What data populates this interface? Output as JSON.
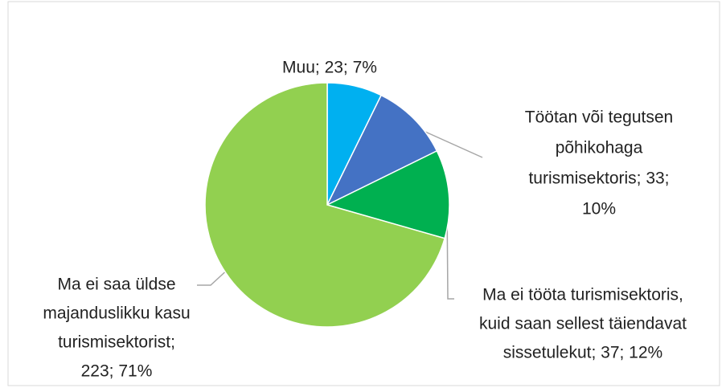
{
  "chart_data": {
    "type": "pie",
    "values": [
      23,
      33,
      37,
      223
    ],
    "value_labels": [
      [
        "Muu; 23; 7%"
      ],
      [
        "Töötan või tegutsen",
        "põhikohaga",
        "turismisektoris; 33;",
        "10%"
      ],
      [
        "Ma ei tööta turismisektoris,",
        "kuid saan sellest täiendavat",
        "sissetulekut; 37; 12%"
      ],
      [
        "Ma ei saa üldse",
        "majanduslikku kasu",
        "turismisektorist;",
        "223; 71%"
      ]
    ],
    "colors": [
      "#00b0f0",
      "#4472c4",
      "#00b050",
      "#92d050"
    ]
  }
}
